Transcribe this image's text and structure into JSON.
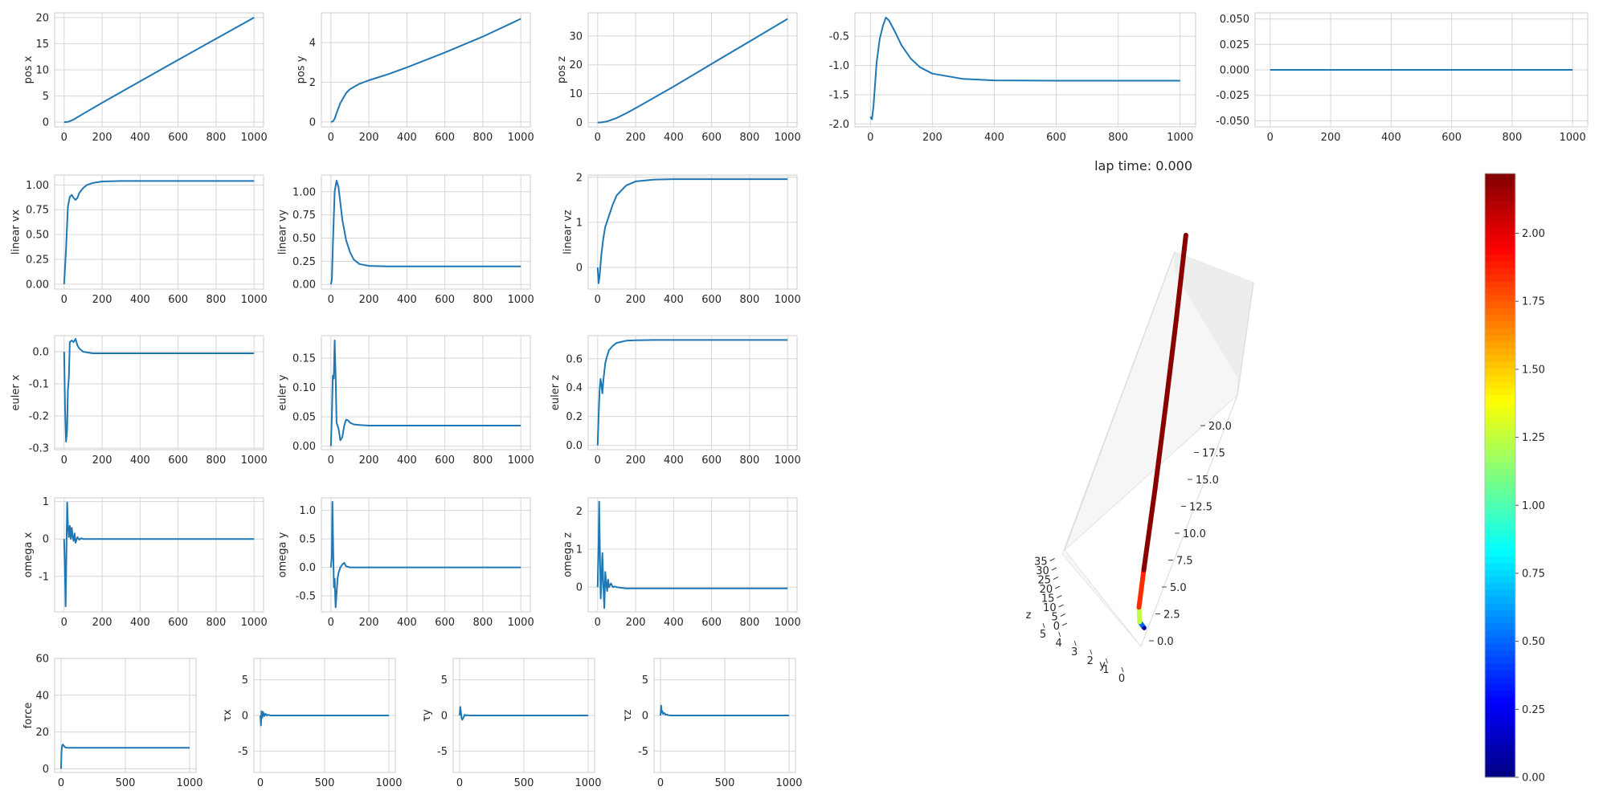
{
  "lap_time": "lap time: 0.000",
  "line_color": "#1f77b4",
  "grid_color": "#d6d6d6",
  "chart_data": [
    {
      "name": "pos x",
      "type": "line",
      "ylabel": "pos x",
      "grid": true,
      "xlim": [
        -50,
        1050
      ],
      "ylim": [
        -0.9,
        20.9
      ],
      "xticks": [
        0,
        200,
        400,
        600,
        800,
        1000
      ],
      "xtick_labels": [
        "0",
        "200",
        "400",
        "600",
        "800",
        "1000"
      ],
      "yticks": [
        0,
        5,
        10,
        15,
        20
      ],
      "ytick_labels": [
        "0",
        "5",
        "10",
        "15",
        "20"
      ],
      "x": [
        0,
        20,
        50,
        100,
        200,
        400,
        600,
        800,
        1000
      ],
      "y": [
        0,
        0.05,
        0.5,
        1.6,
        3.7,
        7.8,
        11.9,
        15.95,
        20.0
      ]
    },
    {
      "name": "pos y",
      "type": "line",
      "ylabel": "pos y",
      "grid": true,
      "xlim": [
        -50,
        1050
      ],
      "ylim": [
        -0.25,
        5.5
      ],
      "xticks": [
        0,
        200,
        400,
        600,
        800,
        1000
      ],
      "xtick_labels": [
        "0",
        "200",
        "400",
        "600",
        "800",
        "1000"
      ],
      "yticks": [
        0,
        2,
        4
      ],
      "ytick_labels": [
        "0",
        "2",
        "4"
      ],
      "x": [
        0,
        10,
        20,
        30,
        50,
        80,
        100,
        150,
        200,
        300,
        400,
        600,
        800,
        1000
      ],
      "y": [
        0,
        0.02,
        0.15,
        0.45,
        0.95,
        1.45,
        1.65,
        1.92,
        2.1,
        2.4,
        2.75,
        3.5,
        4.3,
        5.2
      ]
    },
    {
      "name": "pos z",
      "type": "line",
      "ylabel": "pos z",
      "grid": true,
      "xlim": [
        -50,
        1050
      ],
      "ylim": [
        -1.5,
        38
      ],
      "xticks": [
        0,
        200,
        400,
        600,
        800,
        1000
      ],
      "xtick_labels": [
        "0",
        "200",
        "400",
        "600",
        "800",
        "1000"
      ],
      "yticks": [
        0,
        10,
        20,
        30
      ],
      "ytick_labels": [
        "0",
        "10",
        "20",
        "30"
      ],
      "x": [
        0,
        20,
        50,
        100,
        150,
        200,
        300,
        400,
        600,
        800,
        1000
      ],
      "y": [
        0,
        0.05,
        0.4,
        1.6,
        3.2,
        5.0,
        8.7,
        12.5,
        20.3,
        28.1,
        35.9
      ]
    },
    {
      "name": "panel 4",
      "type": "line",
      "ylabel": "",
      "grid": true,
      "xlim": [
        -50,
        1050
      ],
      "ylim": [
        -2.05,
        -0.1
      ],
      "xticks": [
        0,
        200,
        400,
        600,
        800,
        1000
      ],
      "xtick_labels": [
        "0",
        "200",
        "400",
        "600",
        "800",
        "1000"
      ],
      "yticks": [
        -2.0,
        -1.5,
        -1.0,
        -0.5
      ],
      "ytick_labels": [
        "-2.0",
        "-1.5",
        "-1.0",
        "-0.5"
      ],
      "x": [
        0,
        5,
        10,
        20,
        30,
        40,
        50,
        60,
        80,
        100,
        130,
        160,
        200,
        300,
        400,
        600,
        800,
        1000
      ],
      "y": [
        -1.88,
        -1.92,
        -1.7,
        -0.95,
        -0.55,
        -0.33,
        -0.18,
        -0.23,
        -0.43,
        -0.65,
        -0.88,
        -1.03,
        -1.14,
        -1.23,
        -1.255,
        -1.26,
        -1.26,
        -1.26
      ]
    },
    {
      "name": "panel 5",
      "type": "line",
      "ylabel": "",
      "grid": true,
      "xlim": [
        -50,
        1050
      ],
      "ylim": [
        -0.056,
        0.056
      ],
      "xticks": [
        0,
        200,
        400,
        600,
        800,
        1000
      ],
      "xtick_labels": [
        "0",
        "200",
        "400",
        "600",
        "800",
        "1000"
      ],
      "yticks": [
        -0.05,
        -0.025,
        0,
        0.025,
        0.05
      ],
      "ytick_labels": [
        "-0.050",
        "-0.025",
        "0.000",
        "0.025",
        "0.050"
      ],
      "x": [
        0,
        1000
      ],
      "y": [
        0,
        0
      ]
    },
    {
      "name": "linear vx",
      "type": "line",
      "ylabel": "linear vx",
      "grid": true,
      "xlim": [
        -50,
        1050
      ],
      "ylim": [
        -0.05,
        1.1
      ],
      "xticks": [
        0,
        200,
        400,
        600,
        800,
        1000
      ],
      "xtick_labels": [
        "0",
        "200",
        "400",
        "600",
        "800",
        "1000"
      ],
      "yticks": [
        0,
        0.25,
        0.5,
        0.75,
        1.0
      ],
      "ytick_labels": [
        "0.00",
        "0.25",
        "0.50",
        "0.75",
        "1.00"
      ],
      "x": [
        0,
        10,
        20,
        30,
        40,
        50,
        60,
        70,
        80,
        100,
        120,
        150,
        200,
        300,
        1000
      ],
      "y": [
        0,
        0.35,
        0.78,
        0.88,
        0.9,
        0.87,
        0.85,
        0.87,
        0.92,
        0.97,
        1.0,
        1.02,
        1.035,
        1.04,
        1.04
      ]
    },
    {
      "name": "linear vy",
      "type": "line",
      "ylabel": "linear vy",
      "grid": true,
      "xlim": [
        -50,
        1050
      ],
      "ylim": [
        -0.05,
        1.18
      ],
      "xticks": [
        0,
        200,
        400,
        600,
        800,
        1000
      ],
      "xtick_labels": [
        "0",
        "200",
        "400",
        "600",
        "800",
        "1000"
      ],
      "yticks": [
        0,
        0.25,
        0.5,
        0.75,
        1.0
      ],
      "ytick_labels": [
        "0.00",
        "0.25",
        "0.50",
        "0.75",
        "1.00"
      ],
      "x": [
        0,
        5,
        10,
        20,
        30,
        40,
        50,
        60,
        80,
        100,
        120,
        150,
        200,
        300,
        1000
      ],
      "y": [
        0,
        0.05,
        0.4,
        1.0,
        1.12,
        1.05,
        0.88,
        0.7,
        0.48,
        0.35,
        0.27,
        0.22,
        0.2,
        0.195,
        0.195
      ]
    },
    {
      "name": "linear vz",
      "type": "line",
      "ylabel": "linear vz",
      "grid": true,
      "xlim": [
        -50,
        1050
      ],
      "ylim": [
        -0.48,
        2.05
      ],
      "xticks": [
        0,
        200,
        400,
        600,
        800,
        1000
      ],
      "xtick_labels": [
        "0",
        "200",
        "400",
        "600",
        "800",
        "1000"
      ],
      "yticks": [
        0,
        1,
        2
      ],
      "ytick_labels": [
        "0",
        "1",
        "2"
      ],
      "x": [
        0,
        5,
        10,
        20,
        30,
        40,
        60,
        80,
        100,
        150,
        200,
        300,
        400,
        1000
      ],
      "y": [
        0,
        -0.35,
        -0.2,
        0.3,
        0.65,
        0.9,
        1.15,
        1.4,
        1.6,
        1.82,
        1.91,
        1.95,
        1.96,
        1.96
      ]
    },
    {
      "name": "euler x",
      "type": "line",
      "ylabel": "euler x",
      "grid": true,
      "xlim": [
        -50,
        1050
      ],
      "ylim": [
        -0.305,
        0.05
      ],
      "xticks": [
        0,
        200,
        400,
        600,
        800,
        1000
      ],
      "xtick_labels": [
        "0",
        "200",
        "400",
        "600",
        "800",
        "1000"
      ],
      "yticks": [
        -0.3,
        -0.2,
        -0.1,
        0.0
      ],
      "ytick_labels": [
        "-0.3",
        "-0.2",
        "-0.1",
        "0.0"
      ],
      "x": [
        0,
        5,
        10,
        15,
        20,
        25,
        30,
        40,
        50,
        60,
        70,
        80,
        100,
        150,
        200,
        1000
      ],
      "y": [
        0,
        -0.18,
        -0.28,
        -0.25,
        -0.12,
        -0.08,
        0.03,
        0.035,
        0.03,
        0.04,
        0.02,
        0.01,
        0.0,
        -0.005,
        -0.005,
        -0.005
      ]
    },
    {
      "name": "euler y",
      "type": "line",
      "ylabel": "euler y",
      "grid": true,
      "xlim": [
        -50,
        1050
      ],
      "ylim": [
        -0.006,
        0.188
      ],
      "xticks": [
        0,
        200,
        400,
        600,
        800,
        1000
      ],
      "xtick_labels": [
        "0",
        "200",
        "400",
        "600",
        "800",
        "1000"
      ],
      "yticks": [
        0,
        0.05,
        0.1,
        0.15
      ],
      "ytick_labels": [
        "0.00",
        "0.05",
        "0.10",
        "0.15"
      ],
      "x": [
        0,
        5,
        10,
        15,
        20,
        25,
        30,
        40,
        50,
        60,
        70,
        80,
        90,
        100,
        120,
        150,
        200,
        300,
        1000
      ],
      "y": [
        0,
        0.05,
        0.12,
        0.115,
        0.18,
        0.12,
        0.04,
        0.03,
        0.01,
        0.015,
        0.035,
        0.045,
        0.044,
        0.04,
        0.037,
        0.036,
        0.035,
        0.035,
        0.035
      ]
    },
    {
      "name": "euler z",
      "type": "line",
      "ylabel": "euler z",
      "grid": true,
      "xlim": [
        -50,
        1050
      ],
      "ylim": [
        -0.03,
        0.76
      ],
      "xticks": [
        0,
        200,
        400,
        600,
        800,
        1000
      ],
      "xtick_labels": [
        "0",
        "200",
        "400",
        "600",
        "800",
        "1000"
      ],
      "yticks": [
        0,
        0.2,
        0.4,
        0.6
      ],
      "ytick_labels": [
        "0.0",
        "0.2",
        "0.4",
        "0.6"
      ],
      "x": [
        0,
        5,
        10,
        15,
        20,
        25,
        30,
        40,
        50,
        60,
        80,
        100,
        150,
        200,
        300,
        1000
      ],
      "y": [
        0,
        0.2,
        0.38,
        0.46,
        0.42,
        0.36,
        0.45,
        0.57,
        0.62,
        0.66,
        0.69,
        0.71,
        0.725,
        0.728,
        0.73,
        0.73
      ]
    },
    {
      "name": "omega x",
      "type": "line",
      "ylabel": "omega x",
      "grid": true,
      "xlim": [
        -50,
        1050
      ],
      "ylim": [
        -1.95,
        1.1
      ],
      "xticks": [
        0,
        200,
        400,
        600,
        800,
        1000
      ],
      "xtick_labels": [
        "0",
        "200",
        "400",
        "600",
        "800",
        "1000"
      ],
      "yticks": [
        -1,
        0,
        1
      ],
      "ytick_labels": [
        "-1",
        "0",
        "1"
      ],
      "x": [
        0,
        5,
        8,
        12,
        16,
        20,
        25,
        30,
        35,
        40,
        45,
        50,
        55,
        60,
        70,
        80,
        90,
        100,
        150,
        1000
      ],
      "y": [
        0,
        -1.0,
        -1.8,
        -0.3,
        0.98,
        0.4,
        0.05,
        0.35,
        0.0,
        0.3,
        0.05,
        -0.05,
        0.15,
        -0.1,
        0.05,
        -0.02,
        0.02,
        0.0,
        0.0,
        0.0
      ]
    },
    {
      "name": "omega y",
      "type": "line",
      "ylabel": "omega y",
      "grid": true,
      "xlim": [
        -50,
        1050
      ],
      "ylim": [
        -0.78,
        1.22
      ],
      "xticks": [
        0,
        200,
        400,
        600,
        800,
        1000
      ],
      "xtick_labels": [
        "0",
        "200",
        "400",
        "600",
        "800",
        "1000"
      ],
      "yticks": [
        -0.5,
        0,
        0.5,
        1.0
      ],
      "ytick_labels": [
        "-0.5",
        "0.0",
        "0.5",
        "1.0"
      ],
      "x": [
        0,
        5,
        8,
        12,
        16,
        20,
        25,
        30,
        35,
        40,
        50,
        60,
        70,
        80,
        100,
        150,
        1000
      ],
      "y": [
        0,
        0.2,
        1.15,
        0.3,
        -0.35,
        -0.2,
        -0.7,
        -0.45,
        -0.2,
        -0.1,
        0.0,
        0.05,
        0.08,
        0.02,
        0.0,
        0.0,
        0.0
      ]
    },
    {
      "name": "omega z",
      "type": "line",
      "ylabel": "omega z",
      "grid": true,
      "xlim": [
        -50,
        1050
      ],
      "ylim": [
        -0.65,
        2.35
      ],
      "xticks": [
        0,
        200,
        400,
        600,
        800,
        1000
      ],
      "xtick_labels": [
        "0",
        "200",
        "400",
        "600",
        "800",
        "1000"
      ],
      "yticks": [
        0,
        1,
        2
      ],
      "ytick_labels": [
        "0",
        "1",
        "2"
      ],
      "x": [
        0,
        5,
        8,
        12,
        16,
        20,
        25,
        30,
        35,
        40,
        45,
        50,
        55,
        60,
        70,
        80,
        90,
        100,
        150,
        200,
        1000
      ],
      "y": [
        0,
        1.2,
        2.25,
        0.8,
        -0.3,
        0.1,
        0.9,
        0.05,
        -0.55,
        0.4,
        0.1,
        -0.1,
        0.2,
        0.0,
        0.1,
        0.0,
        0.02,
        0.0,
        -0.03,
        -0.03,
        -0.03
      ]
    },
    {
      "name": "force",
      "type": "line",
      "ylabel": "force",
      "grid": true,
      "xlim": [
        -50,
        1050
      ],
      "ylim": [
        -2,
        60
      ],
      "xticks": [
        0,
        500,
        1000
      ],
      "xtick_labels": [
        "0",
        "500",
        "1000"
      ],
      "yticks": [
        0,
        20,
        40,
        60
      ],
      "ytick_labels": [
        "0",
        "20",
        "40",
        "60"
      ],
      "x": [
        0,
        3,
        6,
        10,
        15,
        20,
        30,
        40,
        60,
        100,
        1000
      ],
      "y": [
        0,
        9.0,
        11.5,
        12.8,
        13.2,
        12.6,
        11.8,
        11.5,
        11.4,
        11.4,
        11.4
      ]
    },
    {
      "name": "tau x",
      "type": "line",
      "ylabel": "τx",
      "grid": true,
      "xlim": [
        -50,
        1050
      ],
      "ylim": [
        -8,
        8
      ],
      "xticks": [
        0,
        500,
        1000
      ],
      "xtick_labels": [
        "0",
        "500",
        "1000"
      ],
      "yticks": [
        -5,
        0,
        5
      ],
      "ytick_labels": [
        "-5",
        "0",
        "5"
      ],
      "x": [
        0,
        5,
        10,
        15,
        20,
        25,
        30,
        40,
        50,
        60,
        80,
        100,
        1000
      ],
      "y": [
        0,
        -1.4,
        0.6,
        -0.3,
        0.5,
        0.3,
        -0.1,
        0.25,
        0.0,
        0.1,
        0.0,
        0.0,
        0.0
      ]
    },
    {
      "name": "tau y",
      "type": "line",
      "ylabel": "τy",
      "grid": true,
      "xlim": [
        -50,
        1050
      ],
      "ylim": [
        -8,
        8
      ],
      "xticks": [
        0,
        500,
        1000
      ],
      "xtick_labels": [
        "0",
        "500",
        "1000"
      ],
      "yticks": [
        -5,
        0,
        5
      ],
      "ytick_labels": [
        "-5",
        "0",
        "5"
      ],
      "x": [
        0,
        5,
        10,
        15,
        20,
        30,
        40,
        50,
        60,
        80,
        100,
        1000
      ],
      "y": [
        0,
        1.2,
        0.5,
        -0.3,
        -0.6,
        -0.3,
        0.1,
        0.0,
        0.05,
        0.0,
        0.0,
        0.0
      ]
    },
    {
      "name": "tau z",
      "type": "line",
      "ylabel": "τz",
      "grid": true,
      "xlim": [
        -50,
        1050
      ],
      "ylim": [
        -8,
        8
      ],
      "xticks": [
        0,
        500,
        1000
      ],
      "xtick_labels": [
        "0",
        "500",
        "1000"
      ],
      "yticks": [
        -5,
        0,
        5
      ],
      "ytick_labels": [
        "-5",
        "0",
        "5"
      ],
      "x": [
        0,
        5,
        10,
        15,
        20,
        30,
        40,
        50,
        60,
        80,
        100,
        1000
      ],
      "y": [
        0,
        1.4,
        0.4,
        0.6,
        0.2,
        0.35,
        0.1,
        0.15,
        0.05,
        0.0,
        0.0,
        0.0
      ]
    },
    {
      "name": "trajectory 3d",
      "type": "line3d",
      "x_tick_labels": [
        "0.0",
        "2.5",
        "5.0",
        "7.5",
        "10.0",
        "12.5",
        "15.0",
        "17.5",
        "20.0"
      ],
      "y_axis_label": "y",
      "y_tick_labels": [
        "0",
        "1",
        "2",
        "3",
        "4",
        "5"
      ],
      "z_axis_label": "z",
      "z_tick_labels": [
        "0",
        "5",
        "10",
        "15",
        "20",
        "25",
        "30",
        "35"
      ],
      "x": [
        0,
        0.5,
        1.6,
        3.7,
        7.8,
        11.9,
        15.95,
        20.0
      ],
      "y": [
        0,
        0.95,
        1.65,
        2.1,
        2.75,
        3.5,
        4.3,
        5.2
      ],
      "z": [
        0,
        0.4,
        1.6,
        5.0,
        12.5,
        20.3,
        28.1,
        35.9
      ],
      "speed": [
        0,
        1.0,
        1.5,
        2.2,
        2.2,
        2.2,
        2.2,
        2.2
      ],
      "colormap": "jet"
    },
    {
      "name": "colorbar",
      "type": "colorbar",
      "colormap": "jet",
      "vmin": 0.0,
      "vmax": 2.22,
      "ticks": [
        0,
        0.25,
        0.5,
        0.75,
        1.0,
        1.25,
        1.5,
        1.75,
        2.0
      ],
      "tick_labels": [
        "0.00",
        "0.25",
        "0.50",
        "0.75",
        "1.00",
        "1.25",
        "1.50",
        "1.75",
        "2.00"
      ]
    }
  ]
}
